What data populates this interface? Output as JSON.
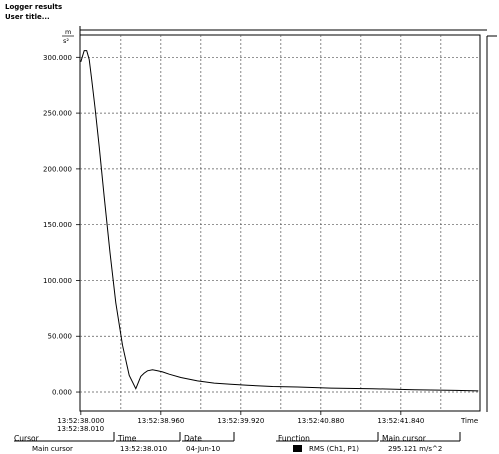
{
  "header": {
    "app_title": "Logger results",
    "user_title": "User title..."
  },
  "chart_data": {
    "type": "line",
    "y_unit_top": "m",
    "y_unit_bottom": "s²",
    "ylim": [
      -17,
      320
    ],
    "y_ticks": [
      0,
      50,
      100,
      150,
      200,
      250,
      300
    ],
    "y_tick_labels": [
      "0.000",
      "50.000",
      "100.000",
      "150.000",
      "200.000",
      "250.000",
      "300.000"
    ],
    "xlim": [
      -0.01,
      4.79
    ],
    "x_ticks": [
      0,
      0.96,
      1.92,
      2.88,
      3.84
    ],
    "x_tick_labels": [
      "13:52:38.000",
      "13:52:38.960",
      "13:52:39.920",
      "13:52:40.880",
      "13:52:41.840"
    ],
    "x_axis_label": "Time",
    "x_start_label": "13:52:38.010",
    "grid": true,
    "series": [
      {
        "name": "RMS (Ch1, P1)",
        "color": "#000000",
        "x": [
          0,
          0.04,
          0.07,
          0.1,
          0.13,
          0.17,
          0.22,
          0.28,
          0.35,
          0.42,
          0.5,
          0.58,
          0.66,
          0.72,
          0.76,
          0.8,
          0.86,
          0.92,
          0.98,
          1.06,
          1.2,
          1.4,
          1.6,
          1.8,
          2.0,
          2.3,
          2.6,
          3.0,
          3.5,
          4.0,
          4.5,
          4.77
        ],
        "y": [
          296,
          306,
          306,
          298,
          280,
          255,
          220,
          175,
          125,
          80,
          42,
          15,
          3,
          14,
          17,
          19,
          20,
          19,
          18,
          16,
          13,
          10,
          8,
          7,
          6,
          5,
          4.5,
          3.5,
          3,
          2,
          1.5,
          1
        ]
      }
    ]
  },
  "cursor_panel": {
    "cursor_header": "Cursor",
    "time_header": "Time",
    "date_header": "Date",
    "function_header": "Function",
    "main_cursor_header": "Main cursor",
    "cursor_name": "Main cursor",
    "time_value": "13:52:38.010",
    "date_value": "04-Jun-10",
    "function_value": "RMS (Ch1, P1)",
    "main_cursor_value": "295.121 m/s^2"
  }
}
